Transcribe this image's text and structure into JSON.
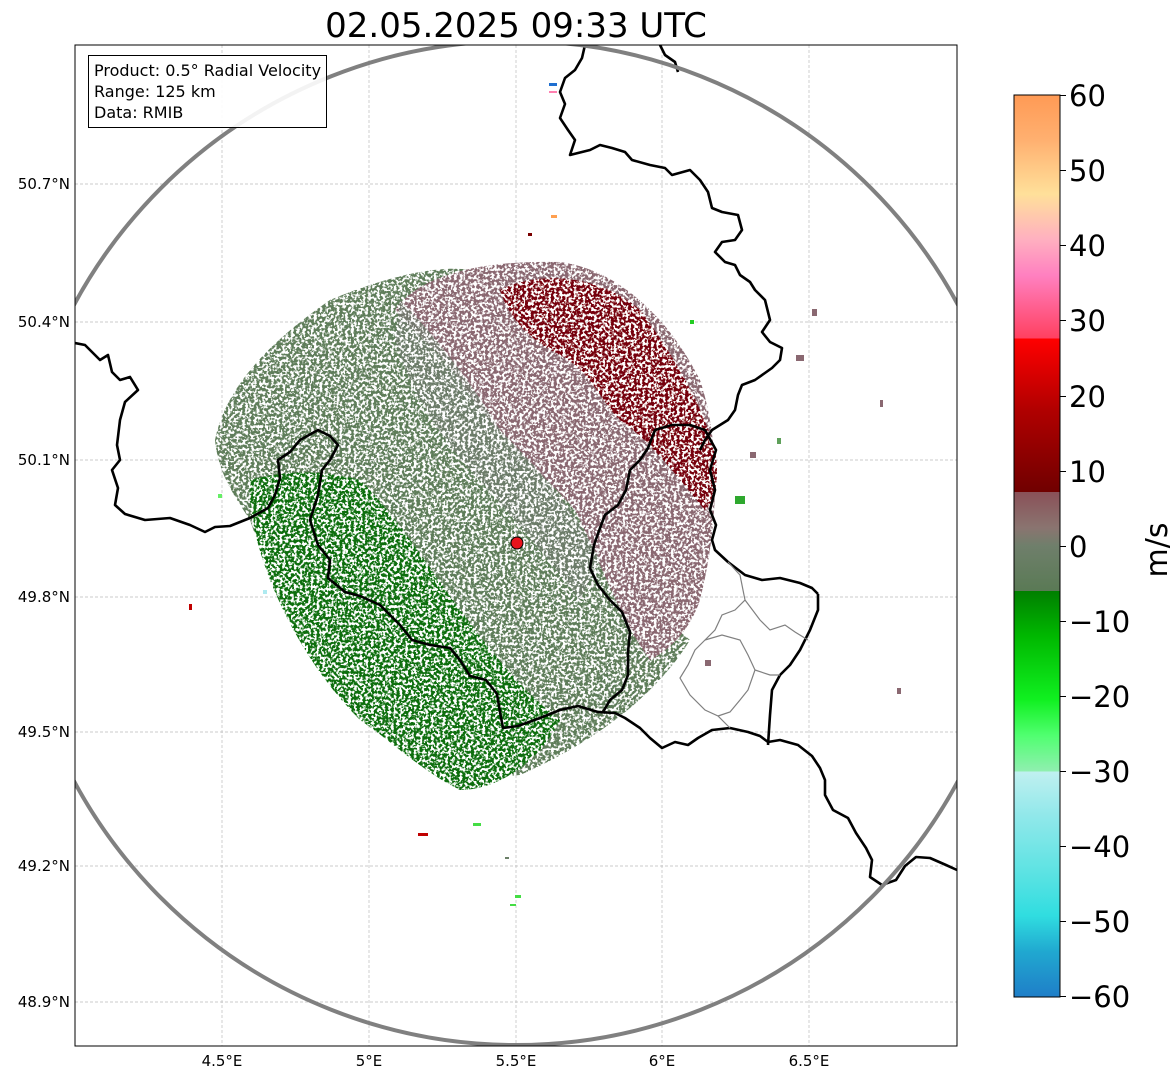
{
  "title": "02.05.2025 09:33 UTC",
  "info": {
    "product": "Product: 0.5° Radial Velocity",
    "range": "Range: 125 km",
    "data": "Data: RMIB"
  },
  "lat_ticks": [
    "50.7°N",
    "50.4°N",
    "50.1°N",
    "49.8°N",
    "49.5°N",
    "49.2°N",
    "48.9°N"
  ],
  "lon_ticks": [
    "4.5°E",
    "5°E",
    "5.5°E",
    "6°E",
    "6.5°E"
  ],
  "colorbar": {
    "label": "m/s",
    "ticks": [
      "60",
      "50",
      "40",
      "30",
      "20",
      "10",
      "0",
      "−10",
      "−20",
      "−30",
      "−40",
      "−50",
      "−60"
    ],
    "range": [
      -60,
      60
    ]
  },
  "radar_site": {
    "lon": 5.5,
    "lat": 49.91
  },
  "colors": {
    "range_ring": "#808080",
    "border": "#000000",
    "site_marker": "#e8141c",
    "outbound_strong": "#7a0000",
    "outbound_weak": "#8a6870",
    "near_zero": "#6b8068",
    "inbound_weak": "#5a7a55",
    "inbound_strong": "#006a00"
  }
}
